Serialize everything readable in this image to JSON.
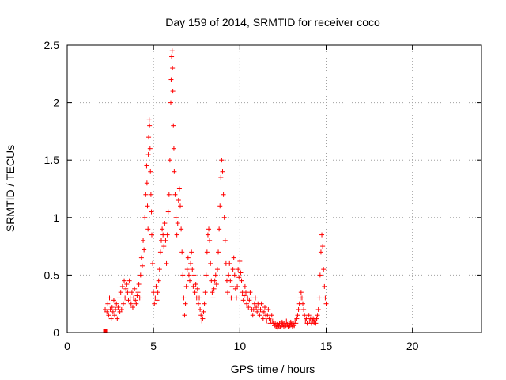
{
  "chart_data": {
    "type": "scatter",
    "title": "Day 159 of 2014, SRMTID for receiver coco",
    "xlabel": "GPS time / hours",
    "ylabel": "SRMTID / TECUs",
    "xlim": [
      0,
      24
    ],
    "ylim": [
      0,
      2.5
    ],
    "xticks": [
      0,
      5,
      10,
      15,
      20
    ],
    "xtick_labels": [
      "0",
      "5",
      "10",
      "15",
      "20"
    ],
    "yticks": [
      0,
      0.5,
      1,
      1.5,
      2,
      2.5
    ],
    "ytick_labels": [
      "0",
      "0.5",
      "1",
      "1.5",
      "2",
      "2.5"
    ],
    "grid": true,
    "marker": "+",
    "color": "#ff0000",
    "series": [
      {
        "name": "SRMTID",
        "points": [
          [
            2.2,
            0.0
          ],
          [
            2.2,
            0.2
          ],
          [
            2.3,
            0.18
          ],
          [
            2.35,
            0.25
          ],
          [
            2.4,
            0.15
          ],
          [
            2.45,
            0.3
          ],
          [
            2.5,
            0.2
          ],
          [
            2.55,
            0.12
          ],
          [
            2.6,
            0.22
          ],
          [
            2.65,
            0.18
          ],
          [
            2.7,
            0.28
          ],
          [
            2.75,
            0.15
          ],
          [
            2.8,
            0.2
          ],
          [
            2.85,
            0.25
          ],
          [
            2.9,
            0.12
          ],
          [
            2.95,
            0.22
          ],
          [
            3.0,
            0.3
          ],
          [
            3.05,
            0.18
          ],
          [
            3.1,
            0.35
          ],
          [
            3.15,
            0.2
          ],
          [
            3.2,
            0.4
          ],
          [
            3.25,
            0.25
          ],
          [
            3.3,
            0.45
          ],
          [
            3.35,
            0.3
          ],
          [
            3.4,
            0.38
          ],
          [
            3.45,
            0.42
          ],
          [
            3.5,
            0.35
          ],
          [
            3.55,
            0.28
          ],
          [
            3.6,
            0.45
          ],
          [
            3.65,
            0.3
          ],
          [
            3.7,
            0.25
          ],
          [
            3.75,
            0.35
          ],
          [
            3.8,
            0.22
          ],
          [
            3.85,
            0.3
          ],
          [
            3.9,
            0.38
          ],
          [
            3.95,
            0.28
          ],
          [
            4.0,
            0.25
          ],
          [
            4.05,
            0.32
          ],
          [
            4.1,
            0.35
          ],
          [
            4.15,
            0.42
          ],
          [
            4.2,
            0.3
          ],
          [
            4.25,
            0.5
          ],
          [
            4.3,
            0.65
          ],
          [
            4.35,
            0.58
          ],
          [
            4.4,
            0.8
          ],
          [
            4.45,
            0.72
          ],
          [
            4.5,
            1.0
          ],
          [
            4.55,
            1.2
          ],
          [
            4.6,
            1.45
          ],
          [
            4.62,
            1.3
          ],
          [
            4.65,
            1.1
          ],
          [
            4.68,
            0.9
          ],
          [
            4.7,
            1.55
          ],
          [
            4.72,
            1.7
          ],
          [
            4.75,
            1.85
          ],
          [
            4.77,
            1.8
          ],
          [
            4.8,
            1.6
          ],
          [
            4.82,
            1.4
          ],
          [
            4.85,
            1.2
          ],
          [
            4.88,
            1.05
          ],
          [
            4.9,
            0.85
          ],
          [
            4.95,
            0.6
          ],
          [
            5.0,
            0.35
          ],
          [
            5.05,
            0.25
          ],
          [
            5.1,
            0.3
          ],
          [
            5.15,
            0.4
          ],
          [
            5.2,
            0.28
          ],
          [
            5.25,
            0.35
          ],
          [
            5.3,
            0.45
          ],
          [
            5.35,
            0.55
          ],
          [
            5.4,
            0.7
          ],
          [
            5.45,
            0.8
          ],
          [
            5.5,
            0.9
          ],
          [
            5.55,
            0.85
          ],
          [
            5.6,
            0.75
          ],
          [
            5.65,
            0.95
          ],
          [
            5.7,
            0.8
          ],
          [
            5.75,
            0.6
          ],
          [
            5.8,
            0.85
          ],
          [
            5.85,
            1.05
          ],
          [
            5.9,
            1.2
          ],
          [
            5.95,
            1.5
          ],
          [
            6.0,
            2.0
          ],
          [
            6.02,
            2.2
          ],
          [
            6.05,
            2.4
          ],
          [
            6.08,
            2.45
          ],
          [
            6.1,
            2.3
          ],
          [
            6.12,
            2.1
          ],
          [
            6.15,
            1.8
          ],
          [
            6.18,
            1.6
          ],
          [
            6.2,
            1.4
          ],
          [
            6.25,
            1.2
          ],
          [
            6.3,
            1.0
          ],
          [
            6.35,
            0.85
          ],
          [
            6.4,
            0.95
          ],
          [
            6.45,
            1.15
          ],
          [
            6.5,
            1.25
          ],
          [
            6.55,
            1.1
          ],
          [
            6.6,
            0.9
          ],
          [
            6.65,
            0.7
          ],
          [
            6.7,
            0.5
          ],
          [
            6.75,
            0.3
          ],
          [
            6.8,
            0.15
          ],
          [
            6.85,
            0.25
          ],
          [
            6.9,
            0.4
          ],
          [
            6.95,
            0.55
          ],
          [
            7.0,
            0.65
          ],
          [
            7.05,
            0.5
          ],
          [
            7.1,
            0.45
          ],
          [
            7.15,
            0.6
          ],
          [
            7.2,
            0.7
          ],
          [
            7.25,
            0.55
          ],
          [
            7.3,
            0.4
          ],
          [
            7.35,
            0.5
          ],
          [
            7.4,
            0.35
          ],
          [
            7.45,
            0.42
          ],
          [
            7.5,
            0.3
          ],
          [
            7.55,
            0.38
          ],
          [
            7.6,
            0.25
          ],
          [
            7.65,
            0.3
          ],
          [
            7.7,
            0.2
          ],
          [
            7.75,
            0.15
          ],
          [
            7.8,
            0.1
          ],
          [
            7.85,
            0.12
          ],
          [
            7.9,
            0.18
          ],
          [
            7.95,
            0.25
          ],
          [
            8.0,
            0.35
          ],
          [
            8.05,
            0.5
          ],
          [
            8.1,
            0.7
          ],
          [
            8.15,
            0.85
          ],
          [
            8.2,
            0.9
          ],
          [
            8.25,
            0.8
          ],
          [
            8.3,
            0.6
          ],
          [
            8.35,
            0.45
          ],
          [
            8.4,
            0.35
          ],
          [
            8.45,
            0.3
          ],
          [
            8.5,
            0.38
          ],
          [
            8.55,
            0.45
          ],
          [
            8.6,
            0.5
          ],
          [
            8.65,
            0.42
          ],
          [
            8.7,
            0.55
          ],
          [
            8.75,
            0.7
          ],
          [
            8.8,
            0.9
          ],
          [
            8.85,
            1.1
          ],
          [
            8.9,
            1.35
          ],
          [
            8.95,
            1.5
          ],
          [
            9.0,
            1.4
          ],
          [
            9.05,
            1.2
          ],
          [
            9.1,
            1.0
          ],
          [
            9.15,
            0.8
          ],
          [
            9.2,
            0.6
          ],
          [
            9.25,
            0.45
          ],
          [
            9.3,
            0.35
          ],
          [
            9.35,
            0.5
          ],
          [
            9.4,
            0.6
          ],
          [
            9.45,
            0.45
          ],
          [
            9.5,
            0.3
          ],
          [
            9.55,
            0.4
          ],
          [
            9.6,
            0.55
          ],
          [
            9.65,
            0.65
          ],
          [
            9.7,
            0.5
          ],
          [
            9.75,
            0.38
          ],
          [
            9.8,
            0.3
          ],
          [
            9.85,
            0.4
          ],
          [
            9.9,
            0.55
          ],
          [
            9.95,
            0.48
          ],
          [
            10.0,
            0.62
          ],
          [
            10.05,
            0.52
          ],
          [
            10.1,
            0.45
          ],
          [
            10.15,
            0.35
          ],
          [
            10.2,
            0.28
          ],
          [
            10.25,
            0.32
          ],
          [
            10.3,
            0.4
          ],
          [
            10.35,
            0.35
          ],
          [
            10.4,
            0.25
          ],
          [
            10.45,
            0.3
          ],
          [
            10.5,
            0.22
          ],
          [
            10.55,
            0.28
          ],
          [
            10.6,
            0.35
          ],
          [
            10.65,
            0.3
          ],
          [
            10.7,
            0.2
          ],
          [
            10.75,
            0.15
          ],
          [
            10.8,
            0.2
          ],
          [
            10.85,
            0.25
          ],
          [
            10.9,
            0.3
          ],
          [
            10.95,
            0.22
          ],
          [
            11.0,
            0.18
          ],
          [
            11.05,
            0.25
          ],
          [
            11.1,
            0.2
          ],
          [
            11.15,
            0.15
          ],
          [
            11.2,
            0.2
          ],
          [
            11.25,
            0.25
          ],
          [
            11.3,
            0.18
          ],
          [
            11.35,
            0.12
          ],
          [
            11.4,
            0.18
          ],
          [
            11.45,
            0.22
          ],
          [
            11.5,
            0.15
          ],
          [
            11.55,
            0.1
          ],
          [
            11.6,
            0.15
          ],
          [
            11.65,
            0.2
          ],
          [
            11.7,
            0.12
          ],
          [
            11.75,
            0.08
          ],
          [
            11.8,
            0.1
          ],
          [
            11.85,
            0.15
          ],
          [
            11.9,
            0.1
          ],
          [
            11.95,
            0.08
          ],
          [
            12.0,
            0.06
          ],
          [
            12.05,
            0.08
          ],
          [
            12.1,
            0.05
          ],
          [
            12.15,
            0.07
          ],
          [
            12.2,
            0.04
          ],
          [
            12.25,
            0.06
          ],
          [
            12.3,
            0.08
          ],
          [
            12.35,
            0.05
          ],
          [
            12.4,
            0.06
          ],
          [
            12.45,
            0.09
          ],
          [
            12.5,
            0.07
          ],
          [
            12.55,
            0.05
          ],
          [
            12.6,
            0.08
          ],
          [
            12.65,
            0.06
          ],
          [
            12.7,
            0.1
          ],
          [
            12.75,
            0.07
          ],
          [
            12.8,
            0.05
          ],
          [
            12.85,
            0.08
          ],
          [
            12.9,
            0.06
          ],
          [
            12.95,
            0.09
          ],
          [
            13.0,
            0.07
          ],
          [
            13.05,
            0.05
          ],
          [
            13.1,
            0.08
          ],
          [
            13.15,
            0.06
          ],
          [
            13.2,
            0.1
          ],
          [
            13.25,
            0.08
          ],
          [
            13.3,
            0.12
          ],
          [
            13.35,
            0.15
          ],
          [
            13.4,
            0.2
          ],
          [
            13.45,
            0.25
          ],
          [
            13.5,
            0.3
          ],
          [
            13.55,
            0.35
          ],
          [
            13.6,
            0.3
          ],
          [
            13.65,
            0.25
          ],
          [
            13.7,
            0.2
          ],
          [
            13.75,
            0.15
          ],
          [
            13.8,
            0.1
          ],
          [
            13.85,
            0.12
          ],
          [
            13.9,
            0.08
          ],
          [
            13.95,
            0.1
          ],
          [
            14.0,
            0.15
          ],
          [
            14.05,
            0.1
          ],
          [
            14.1,
            0.12
          ],
          [
            14.15,
            0.08
          ],
          [
            14.2,
            0.1
          ],
          [
            14.25,
            0.12
          ],
          [
            14.3,
            0.09
          ],
          [
            14.35,
            0.11
          ],
          [
            14.4,
            0.08
          ],
          [
            14.45,
            0.12
          ],
          [
            14.5,
            0.15
          ],
          [
            14.55,
            0.2
          ],
          [
            14.6,
            0.3
          ],
          [
            14.65,
            0.5
          ],
          [
            14.7,
            0.7
          ],
          [
            14.75,
            0.85
          ],
          [
            14.8,
            0.75
          ],
          [
            14.85,
            0.55
          ],
          [
            14.9,
            0.4
          ],
          [
            14.95,
            0.3
          ],
          [
            15.0,
            0.25
          ]
        ]
      }
    ]
  }
}
